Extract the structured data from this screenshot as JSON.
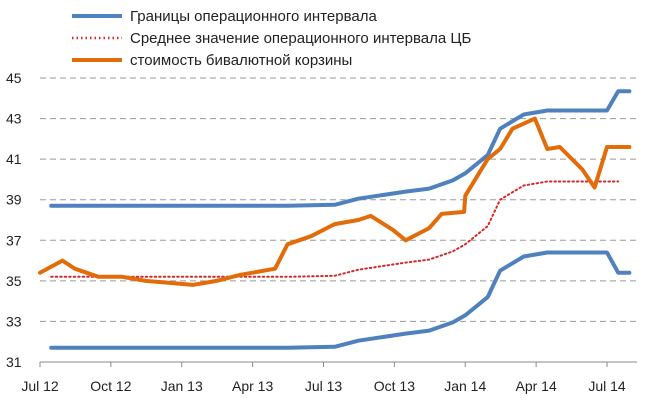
{
  "chart_data": {
    "type": "line",
    "title": "",
    "xlabel": "",
    "ylabel": "",
    "ylim": [
      31,
      45
    ],
    "y_ticks": [
      31,
      33,
      35,
      37,
      39,
      41,
      43,
      45
    ],
    "x_tick_labels": [
      "Jul 12",
      "Oct 12",
      "Jan 13",
      "Apr 13",
      "Jul 13",
      "Oct 13",
      "Jan 14",
      "Apr 14",
      "Jul 14"
    ],
    "grid": "horizontal dashed",
    "legend_position": "top",
    "series": [
      {
        "name": "Границы операционного интервала",
        "style": "solid",
        "color": "#4f81bd",
        "band_upper": {
          "x": [
            "Jul 12",
            "May 13",
            "Jul 13",
            "Aug 13",
            "Oct 13",
            "Nov 13",
            "Dec 13",
            "Jan 14",
            "Jan 14",
            "Feb 14",
            "Mar 14",
            "Apr 14",
            "Jul 14",
            "Jul 14",
            "Jul 14"
          ],
          "y": [
            38.7,
            38.7,
            38.75,
            39.05,
            39.4,
            39.55,
            39.95,
            40.3,
            41.2,
            42.5,
            43.2,
            43.4,
            43.4,
            44.35,
            44.35
          ]
        },
        "band_lower": {
          "x": [
            "Jul 12",
            "May 13",
            "Jul 13",
            "Aug 13",
            "Oct 13",
            "Nov 13",
            "Dec 13",
            "Jan 14",
            "Jan 14",
            "Feb 14",
            "Mar 14",
            "Apr 14",
            "Jul 14",
            "Jul 14",
            "Jul 14"
          ],
          "y": [
            31.7,
            31.7,
            31.75,
            32.05,
            32.4,
            32.55,
            32.95,
            33.3,
            34.2,
            35.5,
            36.2,
            36.4,
            36.4,
            35.4,
            35.4
          ]
        }
      },
      {
        "name": "Среднее значение операционного интервала ЦБ",
        "style": "dotted",
        "color": "#d62728",
        "x": [
          "Jul 12",
          "May 13",
          "Jul 13",
          "Aug 13",
          "Oct 13",
          "Nov 13",
          "Dec 13",
          "Jan 14",
          "Jan 14",
          "Feb 14",
          "Mar 14",
          "Apr 14",
          "Jul 14"
        ],
        "y": [
          35.2,
          35.2,
          35.25,
          35.55,
          35.9,
          36.05,
          36.45,
          36.8,
          37.7,
          39.0,
          39.7,
          39.9,
          39.9
        ]
      },
      {
        "name": "стоимость бивалютной корзины",
        "style": "solid",
        "color": "#e36c0a",
        "x": [
          "Jul 12",
          "Jul 12",
          "Aug 12",
          "Sep 12",
          "Oct 12",
          "Nov 12",
          "Dec 12",
          "Jan 13",
          "Feb 13",
          "Mar 13",
          "Apr 13",
          "Apr 13",
          "May 13",
          "Jun 13",
          "Jul 13",
          "Aug 13",
          "Sep 13",
          "Sep 13",
          "Oct 13",
          "Nov 13",
          "Dec 13",
          "Dec 13",
          "Jan 14",
          "Jan 14",
          "Feb 14",
          "Mar 14",
          "Mar 14",
          "Apr 14",
          "May 14",
          "May 14",
          "Jun 14",
          "Jul 14",
          "Jul 14",
          "Jul 14"
        ],
        "y": [
          35.4,
          36.0,
          35.6,
          35.2,
          35.2,
          35.0,
          34.9,
          34.8,
          35.0,
          35.3,
          35.4,
          35.6,
          36.8,
          37.2,
          37.8,
          38.0,
          38.2,
          37.5,
          37.0,
          37.6,
          38.3,
          38.4,
          39.2,
          41.0,
          41.5,
          42.5,
          43.0,
          41.5,
          41.6,
          40.5,
          39.6,
          41.6,
          41.6,
          41.6
        ]
      }
    ]
  }
}
